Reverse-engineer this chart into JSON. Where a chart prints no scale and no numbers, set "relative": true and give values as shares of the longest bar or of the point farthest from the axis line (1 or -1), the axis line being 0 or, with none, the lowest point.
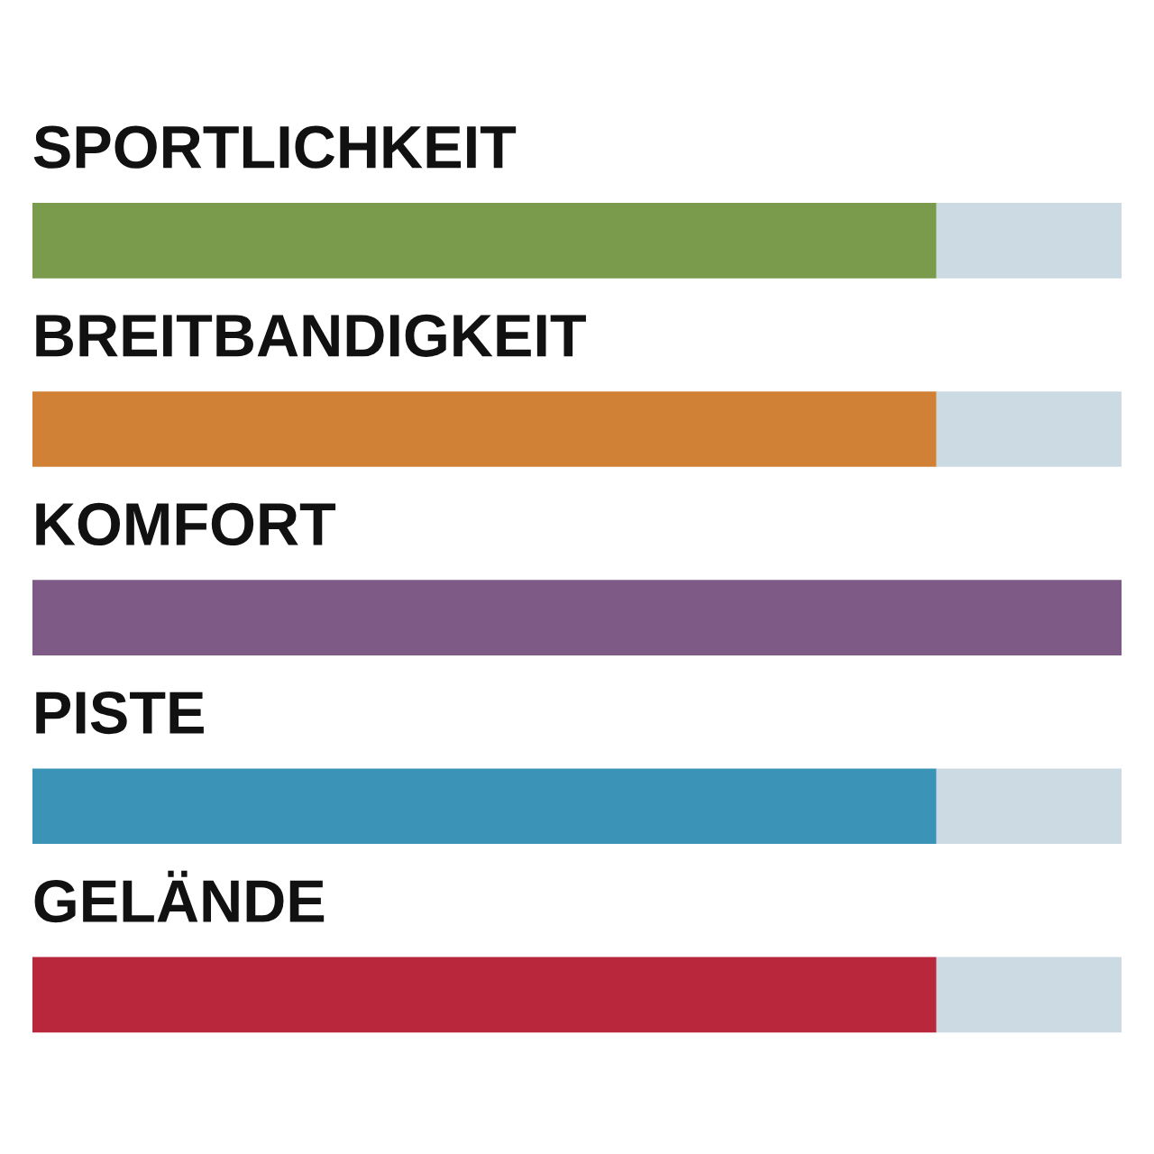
{
  "chart_data": {
    "type": "bar",
    "orientation": "horizontal",
    "stacked": true,
    "relative": true,
    "categories": [
      "SPORTLICHKEIT",
      "BREITBANDIGKEIT",
      "KOMFORT",
      "PISTE",
      "GELÄNDE"
    ],
    "series": [
      {
        "colors": [
          "#7a9a4c",
          "#d08136",
          "#7e5a87",
          "#3b93b8",
          "#b9273c"
        ],
        "values": [
          0.83,
          0.83,
          1,
          0.83,
          0.83
        ]
      },
      {
        "color": "#ccdbe3",
        "values": [
          0.17,
          0.17,
          0,
          0.17,
          0.17
        ]
      }
    ]
  }
}
